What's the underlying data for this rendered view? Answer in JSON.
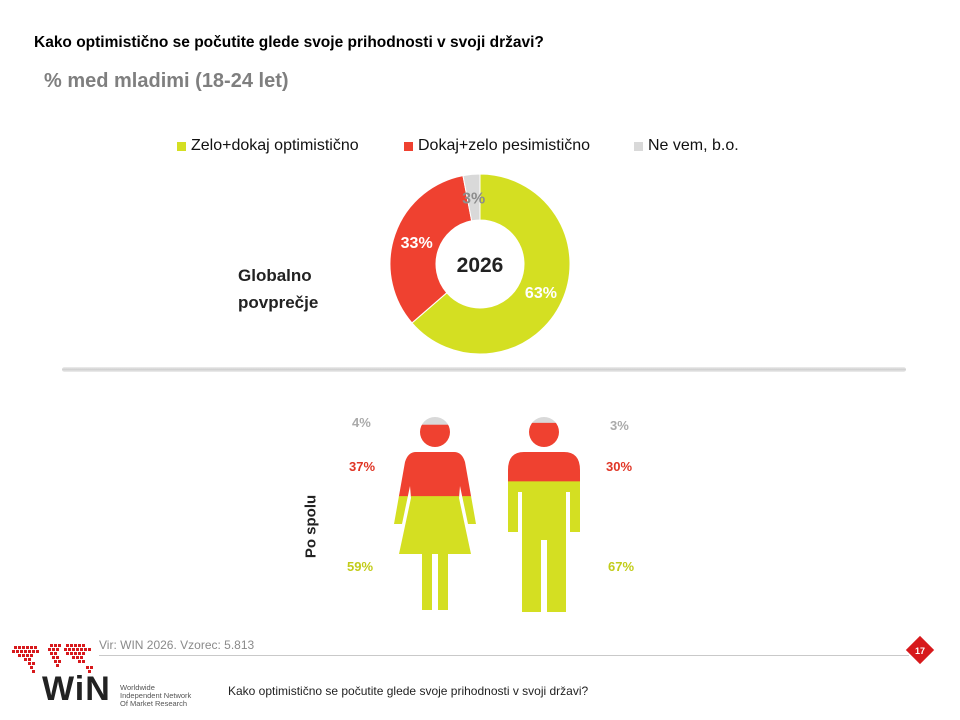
{
  "header": {
    "title": "Kako optimistično se počutite glede svoje prihodnosti v svoji državi?",
    "subtitle": "% med mladimi (18-24 let)"
  },
  "legend": [
    {
      "label": "Zelo+dokaj optimistično",
      "color": "#d4df22"
    },
    {
      "label": "Dokaj+zelo pesimistično",
      "color": "#ef4130"
    },
    {
      "label": "Ne vem, b.o.",
      "color": "#d9d9d9"
    }
  ],
  "global_section": {
    "label_line1": "Globalno",
    "label_line2": "povprečje"
  },
  "gender_section": {
    "label": "Po spolu"
  },
  "chart_data": [
    {
      "type": "pie",
      "center_label": "2026",
      "slices": [
        {
          "name": "Zelo+dokaj optimistično",
          "value": 63,
          "label": "63%",
          "color": "#d4df22"
        },
        {
          "name": "Dokaj+zelo pesimistično",
          "value": 33,
          "label": "33%",
          "color": "#ef4130"
        },
        {
          "name": "Ne vem, b.o.",
          "value": 3,
          "label": "3%",
          "color": "#d9d9d9"
        }
      ]
    },
    {
      "type": "bar",
      "categories": [
        "Ženske",
        "Moški"
      ],
      "stacked": true,
      "series": [
        {
          "name": "Zelo+dokaj optimistično",
          "values": [
            59,
            67
          ],
          "labels": [
            "59%",
            "67%"
          ],
          "color": "#d4df22"
        },
        {
          "name": "Dokaj+zelo pesimistično",
          "values": [
            37,
            30
          ],
          "labels": [
            "37%",
            "30%"
          ],
          "color": "#ef4130"
        },
        {
          "name": "Ne vem, b.o.",
          "values": [
            4,
            3
          ],
          "labels": [
            "4%",
            "3%"
          ],
          "color": "#d9d9d9"
        }
      ]
    }
  ],
  "footer": {
    "source": "Vir: WIN 2026.  Vzorec: 5.813",
    "question": "Kako optimistično se počutite glede svoje prihodnosti v svoji državi?",
    "page_number": "17",
    "logo_text": "WiN",
    "logo_line1": "Worldwide",
    "logo_line2": "Independent Network",
    "logo_line3": "Of Market Research"
  }
}
